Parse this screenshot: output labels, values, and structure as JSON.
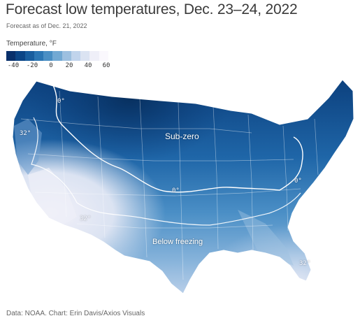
{
  "header": {
    "title": "Forecast low temperatures, Dec. 23–24, 2022",
    "subtitle": "Forecast as of Dec. 21, 2022"
  },
  "legend": {
    "title": "Temperature, °F",
    "ticks": [
      "-40",
      "-20",
      "0",
      "20",
      "40",
      "60"
    ],
    "colors": [
      "#08306b",
      "#0b4586",
      "#185d9e",
      "#2b76b4",
      "#4a8fc4",
      "#72a9d3",
      "#9dc0e0",
      "#c1d4ec",
      "#dbe3f2",
      "#efeff8",
      "#faf8fd"
    ]
  },
  "map": {
    "labels": {
      "subzero": "Sub-zero",
      "below_freezing": "Below freezing",
      "zero_north": "0°",
      "zero_central": "0°",
      "zero_east": "0°",
      "thirty_two_west": "32°",
      "thirty_two_southwest": "32°",
      "thirty_two_florida": "32°"
    },
    "colors": {
      "coldest": "#0a3c79",
      "cold": "#1f66a8",
      "mid": "#4b8fc6",
      "cool": "#85b2da",
      "mild": "#c3d5ec",
      "warm": "#ebe9f5",
      "border": "#ffffff",
      "isotherm": "#ffffff"
    }
  },
  "footer": {
    "source": "Data: NOAA. Chart: Erin Davis/Axios Visuals"
  }
}
